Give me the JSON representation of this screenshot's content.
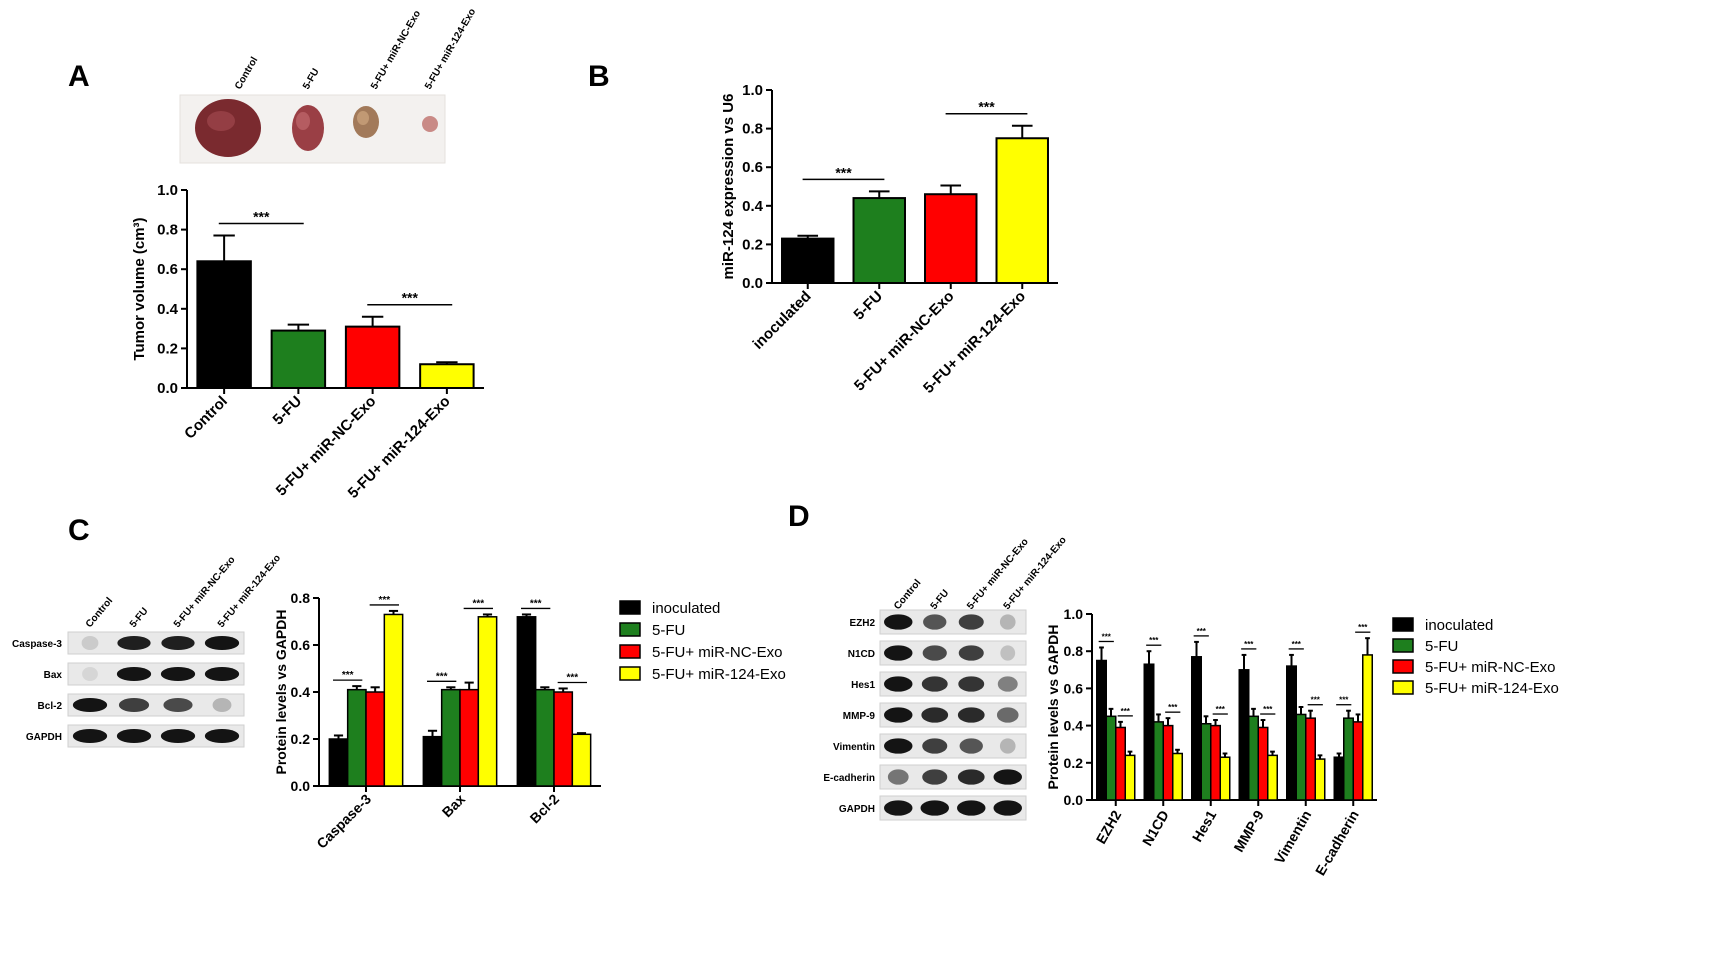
{
  "panels": {
    "a": "A",
    "b": "B",
    "c": "C",
    "d": "D"
  },
  "colors": {
    "inoculated": "#000000",
    "fu": "#1e7f1e",
    "nc": "#ff0000",
    "mir124": "#ffff00",
    "tumor_dark": "#6b1f25",
    "tumor_mid": "#a8484a"
  },
  "tumor_photo": {
    "labels": [
      "Control",
      "5-FU",
      "5-FU+ miR-NC-Exo",
      "5-FU+ miR-124-Exo"
    ]
  },
  "blot_c": {
    "lane_labels": [
      "Control",
      "5-FU",
      "5-FU+ miR-NC-Exo",
      "5-FU+ miR-124-Exo"
    ],
    "rows": [
      "Caspase-3",
      "Bax",
      "Bcl-2",
      "GAPDH"
    ]
  },
  "blot_d": {
    "lane_labels": [
      "Control",
      "5-FU",
      "5-FU+ miR-NC-Exo",
      "5-FU+ miR-124-Exo"
    ],
    "rows": [
      "EZH2",
      "N1CD",
      "Hes1",
      "MMP-9",
      "Vimentin",
      "E-cadherin",
      "GAPDH"
    ]
  },
  "chart_data": [
    {
      "id": "A",
      "type": "bar",
      "categories": [
        "Control",
        "5-FU",
        "5-FU+ miR-NC-Exo",
        "5-FU+ miR-124-Exo"
      ],
      "values": [
        0.64,
        0.29,
        0.31,
        0.12
      ],
      "errors": [
        0.13,
        0.03,
        0.05,
        0.01
      ],
      "colors": [
        "#000000",
        "#1e7f1e",
        "#ff0000",
        "#ffff00"
      ],
      "ylabel": "Tumor volume (cm³)",
      "ylim": [
        0,
        1.0
      ],
      "yticks": [
        "0.0",
        "0.2",
        "0.4",
        "0.6",
        "0.8",
        "1.0"
      ],
      "significance": [
        {
          "from": 0,
          "to": 1,
          "label": "***"
        },
        {
          "from": 2,
          "to": 3,
          "label": "***"
        }
      ]
    },
    {
      "id": "B",
      "type": "bar",
      "categories": [
        "inoculated",
        "5-FU",
        "5-FU+ miR-NC-Exo",
        "5-FU+ miR-124-Exo"
      ],
      "values": [
        0.23,
        0.44,
        0.46,
        0.75
      ],
      "errors": [
        0.015,
        0.035,
        0.045,
        0.065
      ],
      "colors": [
        "#000000",
        "#1e7f1e",
        "#ff0000",
        "#ffff00"
      ],
      "ylabel": "miR-124 expression vs U6",
      "ylim": [
        0,
        1.0
      ],
      "yticks": [
        "0.0",
        "0.2",
        "0.4",
        "0.6",
        "0.8",
        "1.0"
      ],
      "significance": [
        {
          "from": 0,
          "to": 1,
          "label": "***"
        },
        {
          "from": 2,
          "to": 3,
          "label": "***"
        }
      ]
    },
    {
      "id": "C",
      "type": "bar",
      "categories": [
        "Caspase-3",
        "Bax",
        "Bcl-2"
      ],
      "series": [
        {
          "name": "inoculated",
          "values": [
            0.2,
            0.21,
            0.72
          ],
          "errors": [
            0.015,
            0.025,
            0.01
          ]
        },
        {
          "name": "5-FU",
          "values": [
            0.41,
            0.41,
            0.41
          ],
          "errors": [
            0.015,
            0.01,
            0.01
          ]
        },
        {
          "name": "5-FU+ miR-NC-Exo",
          "values": [
            0.4,
            0.41,
            0.4
          ],
          "errors": [
            0.02,
            0.03,
            0.015
          ]
        },
        {
          "name": "5-FU+ miR-124-Exo",
          "values": [
            0.73,
            0.72,
            0.22
          ],
          "errors": [
            0.015,
            0.01,
            0.005
          ]
        }
      ],
      "ylabel": "Protein levels vs GAPDH",
      "ylim": [
        0,
        0.8
      ],
      "yticks": [
        "0.0",
        "0.2",
        "0.4",
        "0.6",
        "0.8"
      ],
      "legend": "right",
      "significance_label": "***"
    },
    {
      "id": "D",
      "type": "bar",
      "categories": [
        "EZH2",
        "N1CD",
        "Hes1",
        "MMP-9",
        "Vimentin",
        "E-cadherin"
      ],
      "series": [
        {
          "name": "inoculated",
          "values": [
            0.75,
            0.73,
            0.77,
            0.7,
            0.72,
            0.23
          ],
          "errors": [
            0.07,
            0.07,
            0.08,
            0.08,
            0.06,
            0.02
          ]
        },
        {
          "name": "5-FU",
          "values": [
            0.45,
            0.42,
            0.41,
            0.45,
            0.46,
            0.44
          ],
          "errors": [
            0.04,
            0.04,
            0.04,
            0.04,
            0.04,
            0.04
          ]
        },
        {
          "name": "5-FU+ miR-NC-Exo",
          "values": [
            0.39,
            0.4,
            0.4,
            0.39,
            0.44,
            0.42
          ],
          "errors": [
            0.03,
            0.04,
            0.03,
            0.04,
            0.04,
            0.04
          ]
        },
        {
          "name": "5-FU+ miR-124-Exo",
          "values": [
            0.24,
            0.25,
            0.23,
            0.24,
            0.22,
            0.78
          ],
          "errors": [
            0.02,
            0.02,
            0.02,
            0.02,
            0.02,
            0.09
          ]
        }
      ],
      "ylabel": "Protein levels vs GAPDH",
      "ylim": [
        0,
        1.0
      ],
      "yticks": [
        "0.0",
        "0.2",
        "0.4",
        "0.6",
        "0.8",
        "1.0"
      ],
      "legend": "right",
      "significance_label": "***"
    }
  ]
}
